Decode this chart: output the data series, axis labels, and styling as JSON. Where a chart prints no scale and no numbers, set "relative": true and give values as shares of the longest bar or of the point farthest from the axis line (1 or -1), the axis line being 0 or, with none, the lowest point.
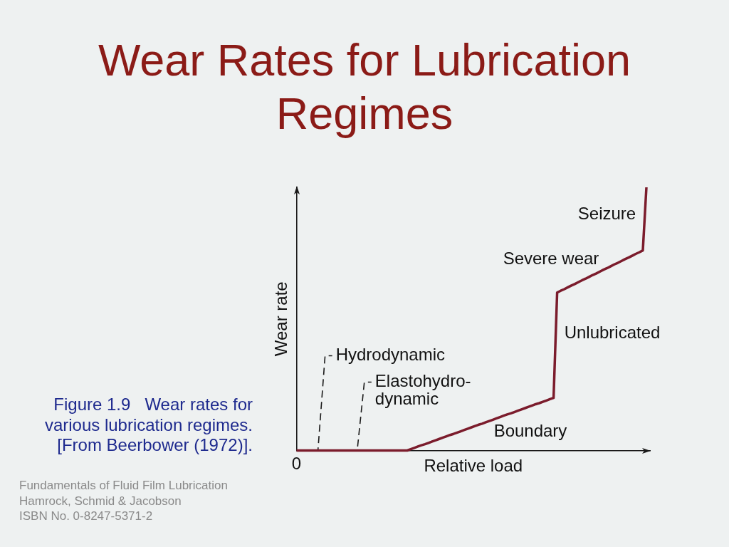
{
  "chart_data": {
    "type": "line",
    "title": "Wear Rates for Lubrication Regimes",
    "xlabel": "Relative load",
    "ylabel": "Wear rate",
    "relative": true,
    "marker": "none",
    "legend": false,
    "categories": [
      null,
      null,
      null,
      null,
      null,
      null,
      null,
      null,
      null,
      null,
      null,
      null,
      null,
      null,
      null,
      null,
      null,
      null,
      null,
      null,
      null,
      null,
      null,
      null,
      null,
      null,
      null,
      null,
      null,
      null,
      null,
      null,
      null,
      null,
      null,
      null,
      null,
      null,
      null,
      null,
      null,
      null,
      null,
      null,
      null,
      null,
      null,
      null,
      null,
      null,
      null,
      null,
      null,
      null,
      null,
      null,
      null,
      null,
      null,
      null,
      null,
      null,
      null,
      null,
      null,
      null,
      null,
      null,
      null,
      null,
      null,
      null,
      null,
      null,
      null,
      null,
      null,
      null,
      null,
      null,
      null,
      null,
      null,
      null,
      null,
      null,
      null,
      null,
      null,
      null,
      null,
      null,
      null,
      null,
      null,
      null,
      null,
      null,
      null,
      null
    ],
    "series": [
      {
        "color": "#7b1c2c",
        "values": [
          0,
          0,
          0,
          0,
          0,
          0,
          0,
          0,
          0,
          0,
          0,
          0,
          0,
          0,
          0,
          0,
          0,
          0,
          0,
          0,
          0,
          0,
          0,
          0,
          0,
          0,
          0,
          0,
          0,
          0,
          0,
          0,
          0.005,
          0.01,
          0.015,
          0.02,
          0.024,
          0.029,
          0.034,
          0.039,
          0.044,
          0.049,
          0.054,
          0.059,
          0.063,
          0.068,
          0.073,
          0.078,
          0.083,
          0.088,
          0.093,
          0.098,
          0.102,
          0.107,
          0.112,
          0.117,
          0.122,
          0.127,
          0.132,
          0.137,
          0.141,
          0.146,
          0.151,
          0.156,
          0.161,
          0.166,
          0.171,
          0.176,
          0.18,
          0.185,
          0.19,
          0.195,
          0.2,
          0.6,
          0.607,
          0.613,
          0.62,
          0.627,
          0.633,
          0.64,
          0.647,
          0.653,
          0.66,
          0.667,
          0.673,
          0.68,
          0.687,
          0.693,
          0.7,
          0.707,
          0.713,
          0.72,
          0.727,
          0.733,
          0.74,
          0.747,
          0.753,
          0.76,
          1,
          null
        ]
      },
      {
        "name": "Hydrodynamic",
        "color": "#1a1a1a",
        "line_style": "dashed",
        "values": [
          null,
          null,
          null,
          null,
          null,
          null,
          0,
          0.18,
          0.36,
          0.36,
          0.36,
          null,
          null,
          null,
          null,
          null,
          null,
          null,
          null,
          null,
          null,
          null,
          null,
          null,
          null,
          null,
          null,
          null,
          null,
          null,
          null,
          null,
          null,
          null,
          null,
          null,
          null,
          null,
          null,
          null,
          null,
          null,
          null,
          null,
          null,
          null,
          null,
          null,
          null,
          null,
          null,
          null,
          null,
          null,
          null,
          null,
          null,
          null,
          null,
          null,
          null,
          null,
          null,
          null,
          null,
          null,
          null,
          null,
          null,
          null,
          null,
          null,
          null,
          null,
          null,
          null,
          null,
          null,
          null,
          null,
          null,
          null,
          null,
          null,
          null,
          null,
          null,
          null,
          null,
          null,
          null,
          null,
          null,
          null,
          null,
          null,
          null,
          null,
          null,
          null
        ]
      },
      {
        "name": "Elastohydro-\ndynamic",
        "color": "#1a1a1a",
        "line_style": "dashed",
        "values": [
          null,
          null,
          null,
          null,
          null,
          null,
          null,
          null,
          null,
          null,
          null,
          null,
          null,
          null,
          null,
          null,
          null,
          0,
          0.13,
          0.26,
          0.26,
          0.26,
          null,
          null,
          null,
          null,
          null,
          null,
          null,
          null,
          null,
          null,
          null,
          null,
          null,
          null,
          null,
          null,
          null,
          null,
          null,
          null,
          null,
          null,
          null,
          null,
          null,
          null,
          null,
          null,
          null,
          null,
          null,
          null,
          null,
          null,
          null,
          null,
          null,
          null,
          null,
          null,
          null,
          null,
          null,
          null,
          null,
          null,
          null,
          null,
          null,
          null,
          null,
          null,
          null,
          null,
          null,
          null,
          null,
          null,
          null,
          null,
          null,
          null,
          null,
          null,
          null,
          null,
          null,
          null,
          null,
          null,
          null,
          null,
          null,
          null,
          null,
          null,
          null,
          null
        ]
      }
    ],
    "annotations": [
      "Seizure",
      "Severe wear",
      "Unlubricated",
      "Boundary",
      "0",
      "Figure 1.9   Wear rates for\nvarious lubrication regimes.\n[From Beerbower (1972)].",
      "Fundamentals of Fluid Film Lubrication\nHamrock, Schmid & Jacobson\nISBN No. 0-8247-5371-2"
    ]
  }
}
